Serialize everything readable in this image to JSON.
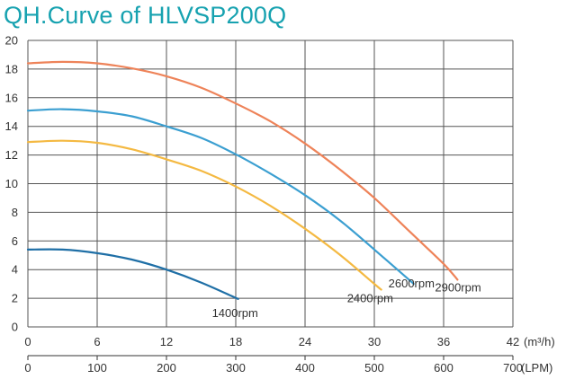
{
  "chart_data": {
    "type": "line",
    "title": "QH.Curve of HLVSP200Q",
    "xlim": [
      0,
      42
    ],
    "ylim": [
      0,
      20
    ],
    "x_ticks": [
      "0",
      "6",
      "12",
      "18",
      "24",
      "30",
      "36",
      "42"
    ],
    "x_unit": "(m³/h)",
    "x2_ticks": [
      "0",
      "100",
      "200",
      "300",
      "400",
      "500",
      "600",
      "700"
    ],
    "x2_unit": "(LPM)",
    "y_ticks": [
      "0",
      "2",
      "4",
      "6",
      "8",
      "10",
      "12",
      "14",
      "16",
      "18",
      "20"
    ],
    "grid": true,
    "series": [
      {
        "name": "1400rpm",
        "color": "#1f6fa6",
        "x": [
          0,
          3,
          6,
          9,
          12,
          15,
          18.2
        ],
        "y": [
          5.4,
          5.4,
          5.15,
          4.7,
          4.0,
          3.1,
          1.95
        ]
      },
      {
        "name": "2400rpm",
        "color": "#f4b942",
        "x": [
          0,
          3,
          6,
          9,
          12,
          15,
          18,
          21,
          24,
          27,
          30,
          30.6
        ],
        "y": [
          12.9,
          13.0,
          12.85,
          12.4,
          11.7,
          10.9,
          9.8,
          8.45,
          6.85,
          5.05,
          3.0,
          2.6
        ]
      },
      {
        "name": "2600rpm",
        "color": "#3b9fd1",
        "x": [
          0,
          3,
          6,
          9,
          12,
          15,
          18,
          21,
          24,
          27,
          30,
          33,
          33.4
        ],
        "y": [
          15.1,
          15.2,
          15.05,
          14.7,
          14.0,
          13.2,
          12.05,
          10.7,
          9.2,
          7.45,
          5.4,
          3.3,
          3.0
        ]
      },
      {
        "name": "2900rpm",
        "color": "#ee8359",
        "x": [
          0,
          3,
          6,
          9,
          12,
          15,
          18,
          21,
          24,
          27,
          30,
          33,
          36,
          37.2
        ],
        "y": [
          18.4,
          18.5,
          18.4,
          18.05,
          17.5,
          16.7,
          15.6,
          14.35,
          12.8,
          11.0,
          9.0,
          6.7,
          4.4,
          3.3
        ]
      }
    ]
  }
}
